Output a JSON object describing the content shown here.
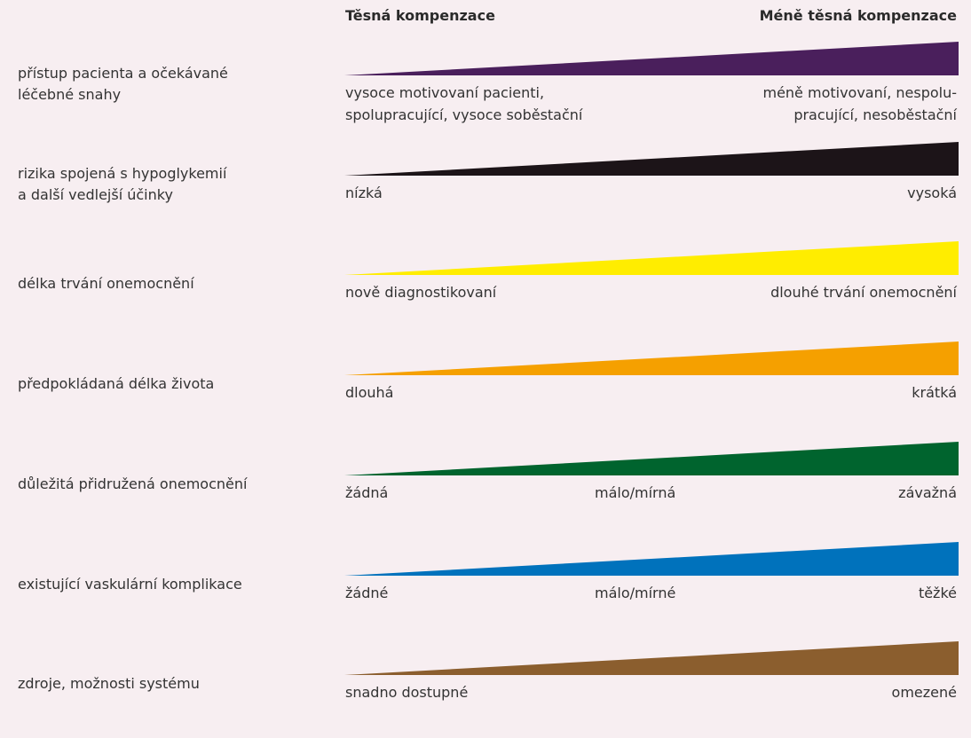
{
  "headers": {
    "left": "Těsná kompenzace",
    "right": "Méně těsná kompenzace"
  },
  "rows": [
    {
      "label": [
        "přístup pacienta a očekávané",
        "léčebné snahy"
      ],
      "color": "#4a1f5c",
      "left": [
        "vysoce motivovaní pacienti,",
        "spolupracující, vysoce soběstační"
      ],
      "mid": "",
      "right": [
        "méně motivovaní, nespolu-",
        "pracující, nesoběstační"
      ]
    },
    {
      "label": [
        "rizika spojená s hypoglykemií",
        "a další vedlejší účinky"
      ],
      "color": "#1c1418",
      "left": [
        "nízká"
      ],
      "mid": "",
      "right": [
        "vysoká"
      ]
    },
    {
      "label": [
        "délka trvání onemocnění"
      ],
      "color": "#ffed00",
      "left": [
        "nově diagnostikovaní"
      ],
      "mid": "",
      "right": [
        "dlouhé trvání onemocnění"
      ]
    },
    {
      "label": [
        "předpokládaná délka života"
      ],
      "color": "#f5a000",
      "left": [
        "dlouhá"
      ],
      "mid": "",
      "right": [
        "krátká"
      ]
    },
    {
      "label": [
        "důležitá přidružená onemocnění"
      ],
      "color": "#00642e",
      "left": [
        "žádná"
      ],
      "mid": "málo/mírná",
      "right": [
        "závažná"
      ]
    },
    {
      "label": [
        "existující vaskulární komplikace"
      ],
      "color": "#0072bc",
      "left": [
        "žádné"
      ],
      "mid": "málo/mírné",
      "right": [
        "těžké"
      ]
    },
    {
      "label": [
        "zdroje, možnosti systému"
      ],
      "color": "#8b5e2e",
      "left": [
        "snadno dostupné"
      ],
      "mid": "",
      "right": [
        "omezené"
      ]
    }
  ]
}
